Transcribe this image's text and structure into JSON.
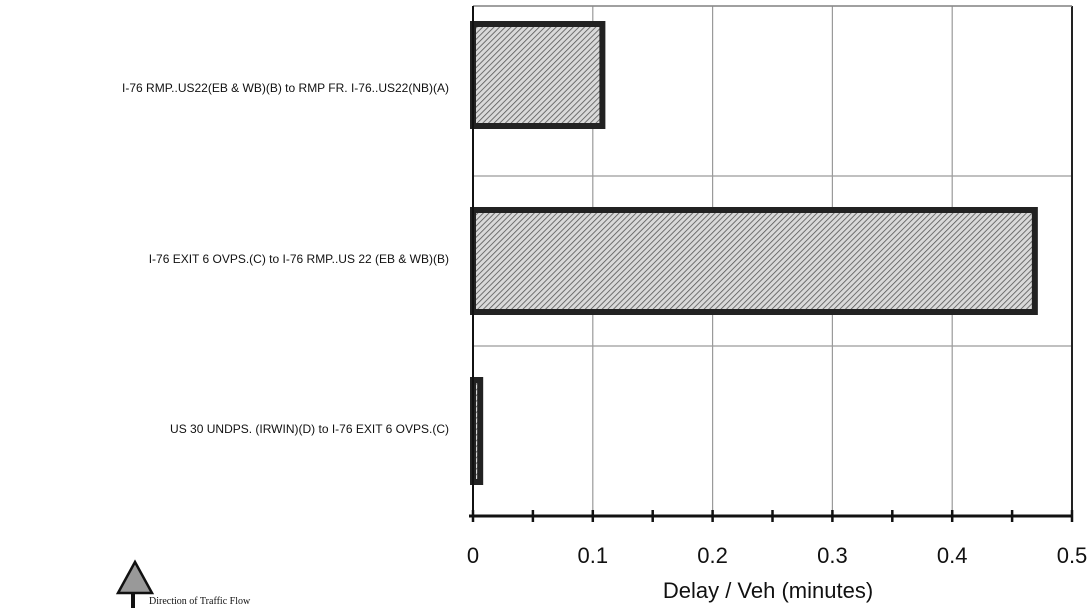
{
  "chart_data": {
    "type": "bar",
    "orientation": "horizontal",
    "categories": [
      "I-76 RMP..US22(EB & WB)(B) to RMP FR. I-76..US22(NB)(A)",
      "I-76 EXIT 6 OVPS.(C) to I-76 RMP..US 22 (EB & WB)(B)",
      "US 30 UNDPS. (IRWIN)(D) to I-76 EXIT 6 OVPS.(C)"
    ],
    "values": [
      0.108,
      0.469,
      0.006
    ],
    "xlabel": "Delay / Veh (minutes)",
    "xlim": [
      0,
      0.5
    ],
    "xticks": [
      "0",
      "0.1",
      "0.2",
      "0.3",
      "0.4",
      "0.5"
    ],
    "grid": true,
    "bar_fill": "hatched",
    "colors": {
      "bar_border": "#222222",
      "hatch": "#555555",
      "grid": "#9a9a9a"
    }
  },
  "annotation": {
    "text": "Direction of Traffic Flow",
    "icon": "up-arrow-icon"
  }
}
